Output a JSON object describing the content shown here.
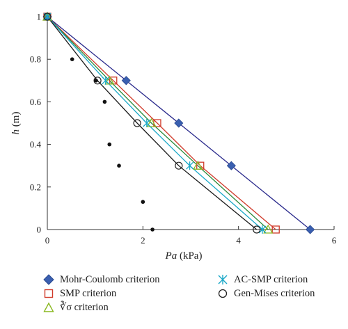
{
  "chart_data": {
    "type": "scatter",
    "title": "",
    "xlabel": {
      "var": "Pa",
      "unit": " (kPa)"
    },
    "ylabel": {
      "var": "h",
      "unit": " (m)"
    },
    "xlim": [
      0,
      6
    ],
    "ylim": [
      0,
      1
    ],
    "xticks": [
      "0",
      "2",
      "4",
      "6"
    ],
    "yticks": [
      "0",
      "0.2",
      "0.4",
      "0.6",
      "0.8",
      "1"
    ],
    "grid": false,
    "legend_position": "bottom",
    "series": [
      {
        "name": "Mohr-Coulomb criterion",
        "marker": "filled-diamond",
        "color": "#3a5fb0",
        "line_color": "#2a2a8c",
        "x": [
          0,
          1.65,
          2.75,
          3.85,
          5.5
        ],
        "y": [
          1,
          0.7,
          0.5,
          0.3,
          0
        ]
      },
      {
        "name": "SMP criterion",
        "marker": "open-square",
        "color": "#d03a2a",
        "line_color": "#d03a2a",
        "x": [
          0,
          1.38,
          2.3,
          3.2,
          4.78
        ],
        "y": [
          1,
          0.7,
          0.5,
          0.3,
          0
        ]
      },
      {
        "name": "∛σ criterion",
        "marker": "open-triangle",
        "color": "#8ab820",
        "line_color": "#2a8a3a",
        "x": [
          0,
          1.3,
          2.18,
          3.15,
          4.62
        ],
        "y": [
          1,
          0.7,
          0.5,
          0.3,
          0
        ]
      },
      {
        "name": "AC-SMP criterion",
        "marker": "asterisk",
        "color": "#1aa8c8",
        "line_color": "#1aa8c8",
        "x": [
          0,
          1.22,
          2.08,
          2.98,
          4.5
        ],
        "y": [
          1,
          0.7,
          0.5,
          0.3,
          0
        ]
      },
      {
        "name": "Gen-Mises criterion",
        "marker": "open-circle",
        "color": "#222222",
        "line_color": "#1a1a1a",
        "x": [
          0,
          1.05,
          1.88,
          2.75,
          4.38
        ],
        "y": [
          1,
          0.7,
          0.5,
          0.3,
          0
        ]
      },
      {
        "name": "",
        "marker": "filled-dot",
        "color": "#111111",
        "line_color": null,
        "x": [
          0.52,
          1.02,
          1.2,
          1.3,
          1.5,
          2.0,
          2.2
        ],
        "y": [
          0.8,
          0.7,
          0.6,
          0.4,
          0.3,
          0.13,
          0
        ]
      }
    ],
    "legend": [
      "Mohr-Coulomb criterion",
      "SMP criterion",
      "∛σ criterion",
      "AC-SMP criterion",
      "Gen-Mises criterion"
    ]
  }
}
